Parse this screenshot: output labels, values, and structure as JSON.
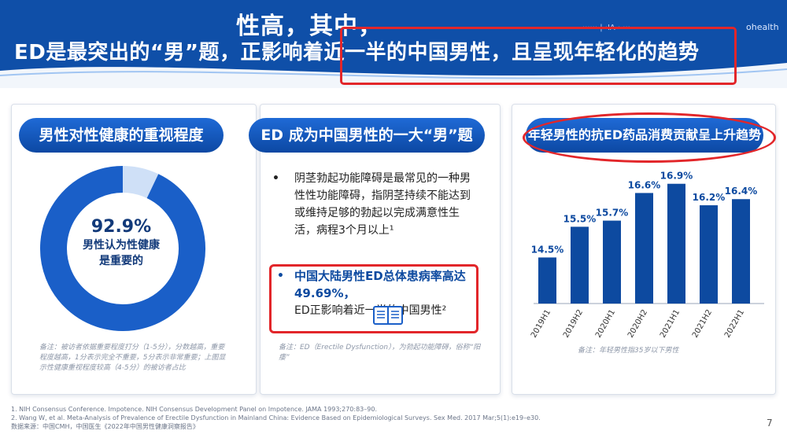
{
  "header": {
    "line1": "性高，其中，",
    "line2": "ED是最突出的“男”题，正影响着近一半的中国男性，且呈现年轻化的趋势",
    "logos": "······ | ·IA · ···",
    "logo_right": "ohealth"
  },
  "panel1": {
    "title": "男性对性健康的重视程度",
    "donut_value": 92.9,
    "donut_pct": "92.9%",
    "donut_caption1": "男性认为性健康",
    "donut_caption2": "是重要的",
    "note": "备注：被访者依据重要程度打分（1-5分），分数越高，重要程度越高，1分表示完全不重要，5分表示非常重要；上图显示性健康重视程度较高（4-5分）的被访者占比"
  },
  "panel2": {
    "title": "ED 成为中国男性的一大“男”题",
    "bullet_mark": "•",
    "bullet1": "阴茎勃起功能障碍是最常见的一种男性性功能障碍，指阴茎持续不能达到或维持足够的勃起以完成满意性生活，病程3个月以上¹",
    "bullet2_highlight": "中国大陆男性ED总体患病率高达49.69%，",
    "bullet2_rest": "ED正影响着近一半的中国男性²",
    "note": "备注：ED（Erectile Dysfunction），为勃起功能障碍，俗称“阳痿”"
  },
  "panel3": {
    "title": "年轻男性的抗ED药品消费贡献呈上升趋势",
    "note": "备注：年轻男性指35岁以下男性"
  },
  "chart_data": {
    "type": "bar",
    "title": "年轻男性的抗ED药品消费贡献呈上升趋势",
    "categories": [
      "2019H1",
      "2019H2",
      "2020H1",
      "2020H2",
      "2021H1",
      "2021H2",
      "2022H1"
    ],
    "values": [
      14.5,
      15.5,
      15.7,
      16.6,
      16.9,
      16.2,
      16.4
    ],
    "value_labels": [
      "14.5%",
      "15.5%",
      "15.7%",
      "16.6%",
      "16.9%",
      "16.2%",
      "16.4%"
    ],
    "xlabel": "",
    "ylabel": "",
    "ylim": [
      13,
      17.2
    ],
    "grid": false,
    "colors": {
      "bar": "#0d4aa0",
      "label": "#0d4aa0"
    }
  },
  "colors": {
    "brand_blue": "#0f4fa8",
    "highlight_red": "#e2262a",
    "donut_light": "#cfe0f7"
  },
  "footer": {
    "ref1": "1. NIH Consensus Conference. Impotence. NIH Consensus Development Panel on Impotence. JAMA 1993;270:83–90.",
    "ref2": "2. Wang W, et al. Meta-Analysis of Prevalence of Erectile Dysfunction in Mainland China: Evidence Based on Epidemiological Surveys. Sex Med. 2017 Mar;5(1):e19–e30.",
    "source": "数据来源：中国CMH，中国医生《2022年中国男性健康洞察报告》",
    "page": "7"
  }
}
